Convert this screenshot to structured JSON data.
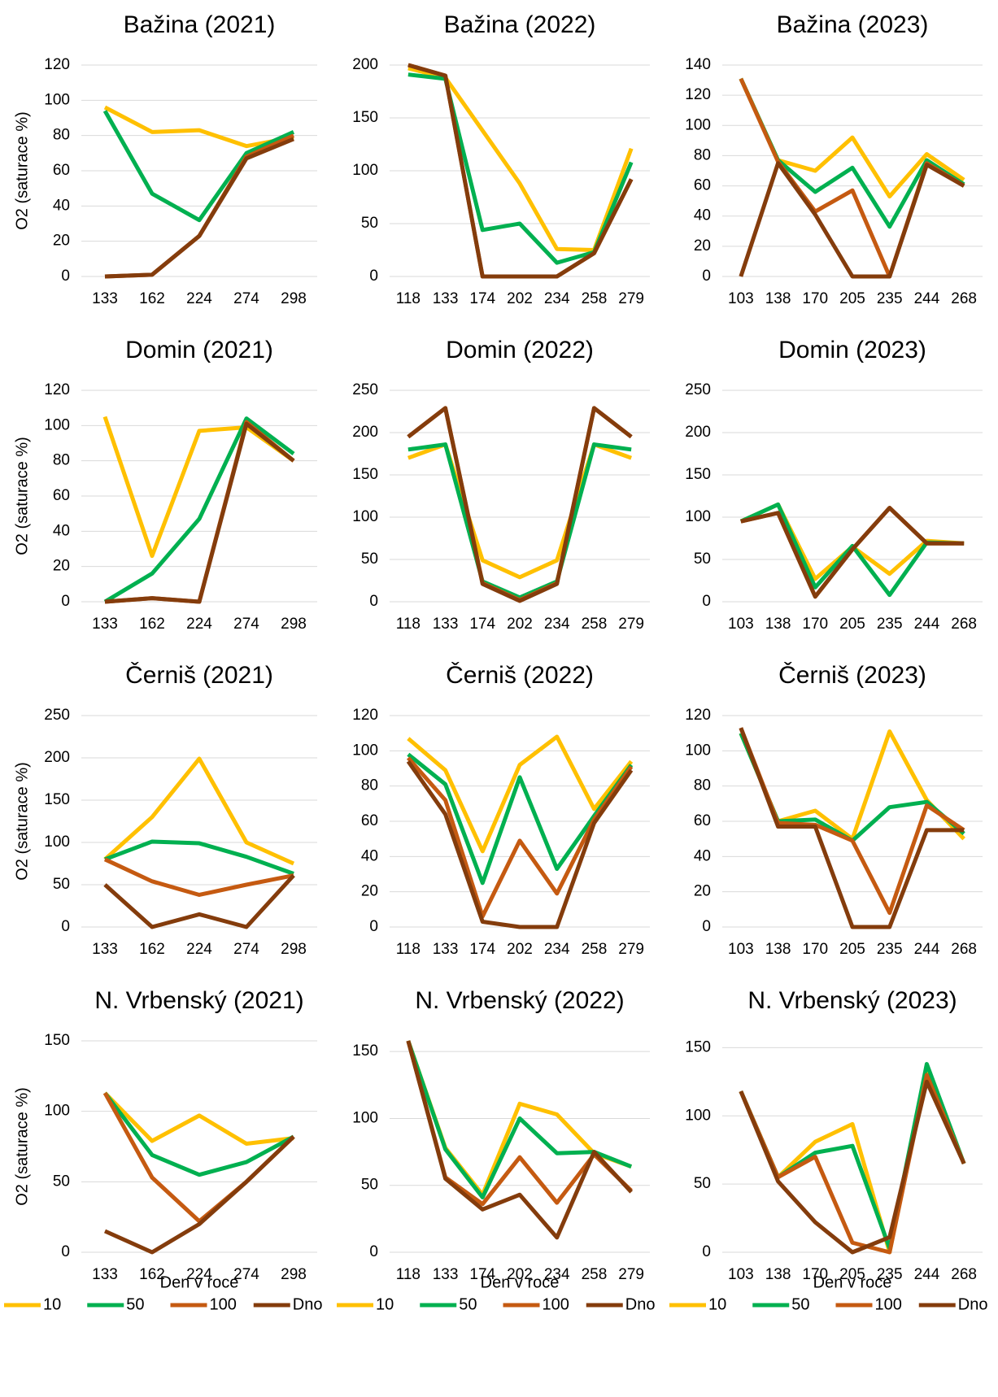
{
  "chart_data": [
    {
      "type": "line",
      "title": "Bažina (2021)",
      "y_label": "O2 (saturace %)",
      "categories": [
        "133",
        "162",
        "224",
        "274",
        "298"
      ],
      "ylim": [
        0,
        120
      ],
      "yticks": [
        0,
        20,
        40,
        60,
        80,
        100,
        120
      ],
      "series": [
        {
          "name": "10",
          "color": "#ffc000",
          "values": [
            96,
            82,
            83,
            74,
            79
          ]
        },
        {
          "name": "50",
          "color": "#00b050",
          "values": [
            94,
            47,
            32,
            70,
            82
          ]
        },
        {
          "name": "100",
          "color": "#c55a11",
          "values": [
            0,
            1,
            23,
            68,
            80
          ]
        },
        {
          "name": "Dno",
          "color": "#843c0c",
          "values": [
            0,
            1,
            23,
            67,
            78
          ]
        }
      ]
    },
    {
      "type": "line",
      "title": "Bažina (2022)",
      "categories": [
        "118",
        "133",
        "174",
        "202",
        "234",
        "258",
        "279"
      ],
      "ylim": [
        0,
        200
      ],
      "yticks": [
        0,
        50,
        100,
        150,
        200
      ],
      "series": [
        {
          "name": "10",
          "color": "#ffc000",
          "values": [
            197,
            188,
            138,
            88,
            26,
            25,
            121
          ]
        },
        {
          "name": "50",
          "color": "#00b050",
          "values": [
            191,
            187,
            44,
            50,
            13,
            23,
            108
          ]
        },
        {
          "name": "100",
          "color": "#c55a11",
          "values": [
            200,
            190,
            0,
            0,
            0,
            22,
            92
          ]
        },
        {
          "name": "Dno",
          "color": "#843c0c",
          "values": [
            200,
            190,
            0,
            0,
            0,
            22,
            92
          ]
        }
      ]
    },
    {
      "type": "line",
      "title": "Bažina (2023)",
      "categories": [
        "103",
        "138",
        "170",
        "205",
        "235",
        "244",
        "268"
      ],
      "ylim": [
        0,
        140
      ],
      "yticks": [
        0,
        20,
        40,
        60,
        80,
        100,
        120,
        140
      ],
      "series": [
        {
          "name": "10",
          "color": "#ffc000",
          "values": [
            131,
            77,
            70,
            92,
            53,
            81,
            64
          ]
        },
        {
          "name": "50",
          "color": "#00b050",
          "values": [
            131,
            77,
            56,
            72,
            33,
            77,
            61
          ]
        },
        {
          "name": "100",
          "color": "#c55a11",
          "values": [
            131,
            76,
            43,
            57,
            0,
            75,
            60
          ]
        },
        {
          "name": "Dno",
          "color": "#843c0c",
          "values": [
            0,
            75,
            41,
            0,
            0,
            74,
            60
          ]
        }
      ]
    },
    {
      "type": "line",
      "title": "Domin (2021)",
      "y_label": "O2 (saturace %)",
      "categories": [
        "133",
        "162",
        "224",
        "274",
        "298"
      ],
      "ylim": [
        0,
        120
      ],
      "yticks": [
        0,
        20,
        40,
        60,
        80,
        100,
        120
      ],
      "series": [
        {
          "name": "10",
          "color": "#ffc000",
          "values": [
            105,
            26,
            97,
            99,
            80
          ]
        },
        {
          "name": "50",
          "color": "#00b050",
          "values": [
            0,
            16,
            47,
            104,
            84
          ]
        },
        {
          "name": "100",
          "color": "#c55a11",
          "values": [
            0,
            2,
            0,
            102,
            80
          ]
        },
        {
          "name": "Dno",
          "color": "#843c0c",
          "values": [
            0,
            2,
            0,
            101,
            80
          ]
        }
      ]
    },
    {
      "type": "line",
      "title": "Domin (2022)",
      "categories": [
        "118",
        "133",
        "174",
        "202",
        "234",
        "258",
        "279"
      ],
      "ylim": [
        0,
        250
      ],
      "yticks": [
        0,
        50,
        100,
        150,
        200,
        250
      ],
      "series": [
        {
          "name": "10",
          "color": "#ffc000",
          "values": [
            170,
            186,
            49,
            29,
            49,
            186,
            170
          ]
        },
        {
          "name": "50",
          "color": "#00b050",
          "values": [
            180,
            186,
            24,
            5,
            24,
            186,
            180
          ]
        },
        {
          "name": "100",
          "color": "#c55a11",
          "values": [
            195,
            229,
            22,
            2,
            22,
            229,
            195
          ]
        },
        {
          "name": "Dno",
          "color": "#843c0c",
          "values": [
            195,
            229,
            21,
            1,
            21,
            229,
            195
          ]
        }
      ]
    },
    {
      "type": "line",
      "title": "Domin (2023)",
      "categories": [
        "103",
        "138",
        "170",
        "205",
        "235",
        "244",
        "268"
      ],
      "ylim": [
        0,
        250
      ],
      "yticks": [
        0,
        50,
        100,
        150,
        200,
        250
      ],
      "series": [
        {
          "name": "10",
          "color": "#ffc000",
          "values": [
            95,
            115,
            27,
            65,
            33,
            72,
            69
          ]
        },
        {
          "name": "50",
          "color": "#00b050",
          "values": [
            95,
            115,
            17,
            66,
            8,
            70,
            69
          ]
        },
        {
          "name": "100",
          "color": "#c55a11",
          "values": [
            95,
            105,
            6,
            62,
            111,
            69,
            69
          ]
        },
        {
          "name": "Dno",
          "color": "#843c0c",
          "values": [
            95,
            105,
            6,
            62,
            111,
            69,
            69
          ]
        }
      ]
    },
    {
      "type": "line",
      "title": "Černiš (2021)",
      "y_label": "O2 (saturace %)",
      "categories": [
        "133",
        "162",
        "224",
        "274",
        "298"
      ],
      "ylim": [
        0,
        250
      ],
      "yticks": [
        0,
        50,
        100,
        150,
        200,
        250
      ],
      "series": [
        {
          "name": "10",
          "color": "#ffc000",
          "values": [
            80,
            130,
            199,
            100,
            75
          ]
        },
        {
          "name": "50",
          "color": "#00b050",
          "values": [
            80,
            101,
            99,
            83,
            63
          ]
        },
        {
          "name": "100",
          "color": "#c55a11",
          "values": [
            80,
            54,
            38,
            50,
            61
          ]
        },
        {
          "name": "Dno",
          "color": "#843c0c",
          "values": [
            50,
            0,
            15,
            0,
            61
          ]
        }
      ]
    },
    {
      "type": "line",
      "title": "Černiš (2022)",
      "categories": [
        "118",
        "133",
        "174",
        "202",
        "234",
        "258",
        "279"
      ],
      "ylim": [
        0,
        120
      ],
      "yticks": [
        0,
        20,
        40,
        60,
        80,
        100,
        120
      ],
      "series": [
        {
          "name": "10",
          "color": "#ffc000",
          "values": [
            107,
            89,
            43,
            92,
            108,
            67,
            94
          ]
        },
        {
          "name": "50",
          "color": "#00b050",
          "values": [
            98,
            81,
            25,
            85,
            33,
            63,
            92
          ]
        },
        {
          "name": "100",
          "color": "#c55a11",
          "values": [
            96,
            72,
            6,
            49,
            19,
            61,
            91
          ]
        },
        {
          "name": "Dno",
          "color": "#843c0c",
          "values": [
            94,
            64,
            3,
            0,
            0,
            59,
            89
          ]
        }
      ]
    },
    {
      "type": "line",
      "title": "Černiš (2023)",
      "categories": [
        "103",
        "138",
        "170",
        "205",
        "235",
        "244",
        "268"
      ],
      "ylim": [
        0,
        120
      ],
      "yticks": [
        0,
        20,
        40,
        60,
        80,
        100,
        120
      ],
      "series": [
        {
          "name": "10",
          "color": "#ffc000",
          "values": [
            110,
            60,
            66,
            50,
            111,
            72,
            50
          ]
        },
        {
          "name": "50",
          "color": "#00b050",
          "values": [
            110,
            60,
            61,
            49,
            68,
            71,
            53
          ]
        },
        {
          "name": "100",
          "color": "#c55a11",
          "values": [
            113,
            59,
            58,
            49,
            8,
            69,
            55
          ]
        },
        {
          "name": "Dno",
          "color": "#843c0c",
          "values": [
            113,
            57,
            57,
            0,
            0,
            55,
            55
          ]
        }
      ]
    },
    {
      "type": "line",
      "title": "N. Vrbenský (2021)",
      "y_label": "O2 (saturace %)",
      "x_label": "Den v roce",
      "legend": "bottom",
      "categories": [
        "133",
        "162",
        "224",
        "274",
        "298"
      ],
      "ylim": [
        0,
        150
      ],
      "yticks": [
        0,
        50,
        100,
        150
      ],
      "series": [
        {
          "name": "10",
          "color": "#ffc000",
          "values": [
            113,
            79,
            97,
            77,
            81
          ]
        },
        {
          "name": "50",
          "color": "#00b050",
          "values": [
            113,
            69,
            55,
            64,
            82
          ]
        },
        {
          "name": "100",
          "color": "#c55a11",
          "values": [
            113,
            53,
            22,
            50,
            82
          ]
        },
        {
          "name": "Dno",
          "color": "#843c0c",
          "values": [
            15,
            0,
            20,
            50,
            82
          ]
        }
      ]
    },
    {
      "type": "line",
      "title": "N. Vrbenský (2022)",
      "x_label": "Den v roce",
      "legend": "bottom",
      "categories": [
        "118",
        "133",
        "174",
        "202",
        "234",
        "258",
        "279"
      ],
      "ylim": [
        0,
        158
      ],
      "yticks": [
        0,
        50,
        100,
        150
      ],
      "series": [
        {
          "name": "10",
          "color": "#ffc000",
          "values": [
            158,
            78,
            43,
            111,
            103,
            74,
            64
          ]
        },
        {
          "name": "50",
          "color": "#00b050",
          "values": [
            158,
            77,
            41,
            100,
            74,
            75,
            64
          ]
        },
        {
          "name": "100",
          "color": "#c55a11",
          "values": [
            158,
            56,
            36,
            71,
            37,
            73,
            46
          ]
        },
        {
          "name": "Dno",
          "color": "#843c0c",
          "values": [
            158,
            55,
            32,
            43,
            11,
            75,
            45
          ]
        }
      ]
    },
    {
      "type": "line",
      "title": "N. Vrbenský (2023)",
      "x_label": "Den v roce",
      "legend": "bottom",
      "categories": [
        "103",
        "138",
        "170",
        "205",
        "235",
        "244",
        "268"
      ],
      "ylim": [
        0,
        155
      ],
      "yticks": [
        0,
        50,
        100,
        150
      ],
      "series": [
        {
          "name": "10",
          "color": "#ffc000",
          "values": [
            118,
            55,
            81,
            94,
            0,
            135,
            65
          ]
        },
        {
          "name": "50",
          "color": "#00b050",
          "values": [
            118,
            55,
            73,
            78,
            3,
            138,
            65
          ]
        },
        {
          "name": "100",
          "color": "#c55a11",
          "values": [
            118,
            55,
            70,
            7,
            0,
            130,
            65
          ]
        },
        {
          "name": "Dno",
          "color": "#843c0c",
          "values": [
            118,
            52,
            22,
            0,
            11,
            125,
            65
          ]
        }
      ]
    }
  ]
}
